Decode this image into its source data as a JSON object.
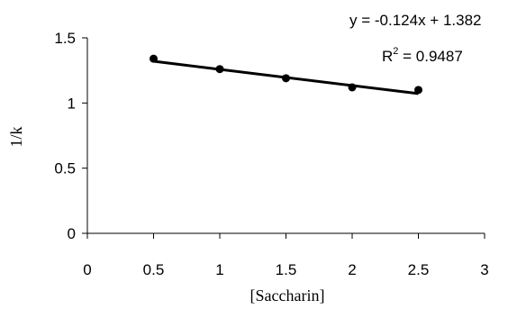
{
  "chart_data": {
    "type": "scatter",
    "title": "",
    "xlabel": "[Saccharin]",
    "ylabel": "1/k",
    "xlim": [
      0,
      3
    ],
    "ylim": [
      0,
      1.5
    ],
    "x_ticks": [
      "0",
      "0.5",
      "1",
      "1.5",
      "2",
      "2.5",
      "3"
    ],
    "y_ticks": [
      "0",
      "0.5",
      "1",
      "1.5"
    ],
    "grid": false,
    "legend": "none",
    "series": [
      {
        "x": [
          0.5,
          1.0,
          1.5,
          2.0,
          2.5
        ],
        "y": [
          1.34,
          1.26,
          1.19,
          1.12,
          1.1
        ]
      }
    ],
    "trendline": {
      "slope": -0.124,
      "intercept": 1.382,
      "x_range": [
        0.5,
        2.5
      ]
    },
    "annotations": {
      "equation": "y = -0.124x + 1.382",
      "r2_prefix": "R",
      "r2_sup": "2",
      "r2_value": " = 0.9487"
    },
    "colors": {
      "marker": "#000000",
      "line": "#000000",
      "axis": "#000000"
    }
  }
}
